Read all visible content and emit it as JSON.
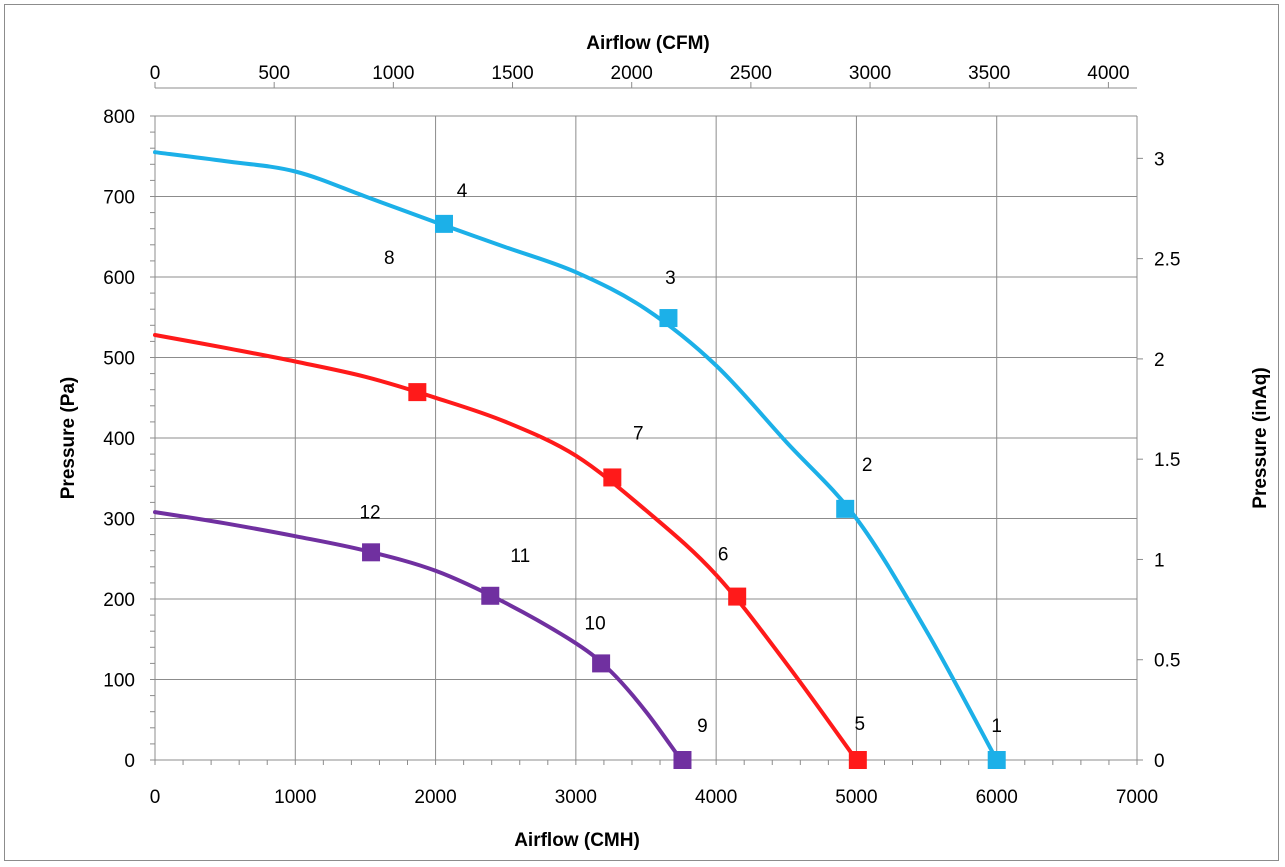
{
  "chart_data": {
    "type": "line",
    "title": "",
    "xlabel": "Airflow (CMH)",
    "x2label": "Airflow (CFM)",
    "ylabel": "Pressure (Pa)",
    "y2label": "Pressure (inAq)",
    "xlim": [
      0,
      7000
    ],
    "x_ticks": [
      "0",
      "1000",
      "2000",
      "3000",
      "4000",
      "5000",
      "6000",
      "7000"
    ],
    "x2lim": [
      0,
      4120
    ],
    "x2_ticks": [
      "0",
      "500",
      "1000",
      "1500",
      "2000",
      "2500",
      "3000",
      "3500",
      "4000"
    ],
    "ylim": [
      0,
      800
    ],
    "y_ticks": [
      "0",
      "100",
      "200",
      "300",
      "400",
      "500",
      "600",
      "700",
      "800"
    ],
    "y2lim": [
      0,
      3.2112
    ],
    "y2_ticks": [
      "0",
      "0.5",
      "1",
      "1.5",
      "2",
      "2.5",
      "3"
    ],
    "grid": true,
    "legend": "none",
    "series": [
      {
        "color": "#1cb0e8",
        "curve": [
          [
            0,
            755
          ],
          [
            500,
            744
          ],
          [
            1000,
            731
          ],
          [
            1500,
            700
          ],
          [
            2000,
            668
          ],
          [
            2500,
            637
          ],
          [
            3000,
            606
          ],
          [
            3500,
            560
          ],
          [
            4000,
            490
          ],
          [
            4500,
            395
          ],
          [
            5000,
            300
          ],
          [
            5500,
            160
          ],
          [
            6000,
            0
          ]
        ],
        "points": [
          {
            "label": "1",
            "x": 6000,
            "y": 0
          },
          {
            "label": "2",
            "x": 4920,
            "y": 312
          },
          {
            "label": "3",
            "x": 3660,
            "y": 549
          },
          {
            "label": "4",
            "x": 2060,
            "y": 666
          }
        ]
      },
      {
        "color": "#ff1a1a",
        "curve": [
          [
            0,
            528
          ],
          [
            500,
            512
          ],
          [
            1000,
            495
          ],
          [
            1500,
            476
          ],
          [
            2000,
            450
          ],
          [
            2500,
            420
          ],
          [
            3000,
            378
          ],
          [
            3500,
            310
          ],
          [
            4000,
            230
          ],
          [
            4500,
            120
          ],
          [
            5000,
            0
          ]
        ],
        "points": [
          {
            "label": "5",
            "x": 5010,
            "y": 0
          },
          {
            "label": "6",
            "x": 4150,
            "y": 203
          },
          {
            "label": "7",
            "x": 3260,
            "y": 351
          },
          {
            "label": "8",
            "x": 1870,
            "y": 457
          }
        ]
      },
      {
        "color": "#7030a0",
        "curve": [
          [
            0,
            308
          ],
          [
            500,
            294
          ],
          [
            1000,
            278
          ],
          [
            1500,
            260
          ],
          [
            2000,
            235
          ],
          [
            2500,
            195
          ],
          [
            3000,
            145
          ],
          [
            3250,
            110
          ],
          [
            3500,
            60
          ],
          [
            3750,
            0
          ]
        ],
        "points": [
          {
            "label": "9",
            "x": 3760,
            "y": 0
          },
          {
            "label": "10",
            "x": 3180,
            "y": 120
          },
          {
            "label": "11",
            "x": 2390,
            "y": 204
          },
          {
            "label": "12",
            "x": 1540,
            "y": 258
          }
        ]
      }
    ]
  }
}
